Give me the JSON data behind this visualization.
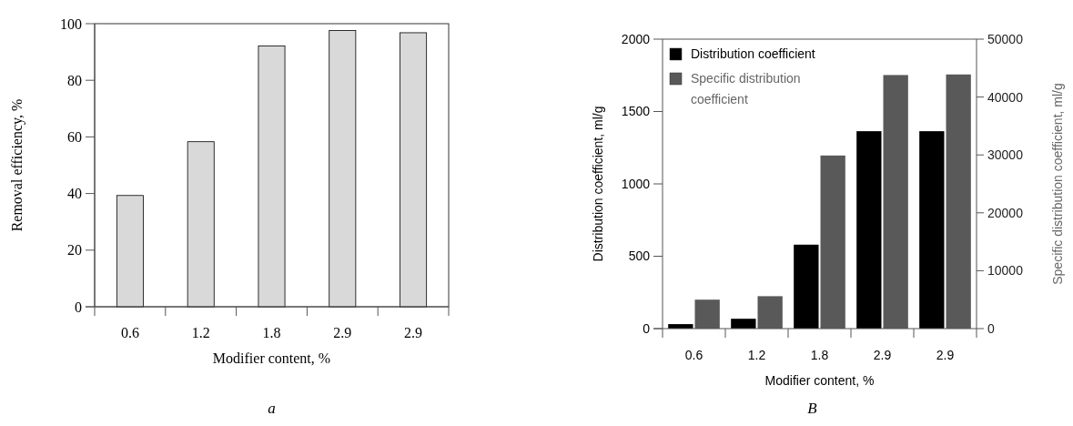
{
  "chart_data": [
    {
      "type": "bar",
      "categories": [
        "0.6",
        "1.2",
        "1.8",
        "2.9",
        "2.9"
      ],
      "values": [
        39.3,
        58.3,
        92.1,
        97.6,
        96.8
      ],
      "color": "#d9d9d9",
      "ylim": [
        0,
        100
      ],
      "yticks": [
        0,
        20,
        40,
        60,
        80,
        100
      ],
      "xlabel": "Modifier content, %",
      "ylabel": "Removal efficiency, %",
      "annotations": [
        "a"
      ],
      "grid": false,
      "legend": false
    },
    {
      "type": "bar",
      "categories": [
        "0.6",
        "1.2",
        "1.8",
        "2.9",
        "2.9"
      ],
      "series": [
        {
          "name": "Distribution coefficient",
          "color": "#000000",
          "values": [
            31,
            68,
            580,
            1364,
            1364
          ]
        },
        {
          "name": "Specific distribution coefficient",
          "color": "#595959",
          "values": [
            5000,
            5600,
            29900,
            43800,
            43900
          ],
          "axis": "y2"
        }
      ],
      "ylim": [
        0,
        2000
      ],
      "yticks": [
        0,
        500,
        1000,
        1500,
        2000
      ],
      "y2lim": [
        0,
        50000
      ],
      "y2ticks": [
        0,
        10000,
        20000,
        30000,
        40000,
        50000
      ],
      "xlabel": "Modifier content, %",
      "ylabel": "Distribution coefficient,  ml/g",
      "y2label": "Specific distribution coefficient,  ml/g",
      "annotations": [
        "B"
      ],
      "grid": false,
      "legend": "top left"
    }
  ]
}
